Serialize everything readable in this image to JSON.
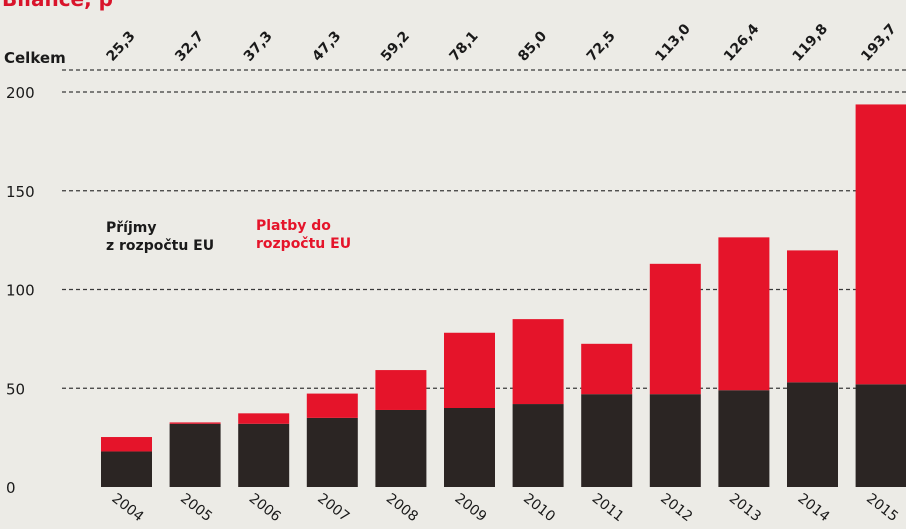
{
  "chart_data": {
    "type": "bar",
    "stacked": true,
    "title": "Bilance, p",
    "totals_label": "Celkem",
    "categories": [
      "2004",
      "2005",
      "2006",
      "2007",
      "2008",
      "2009",
      "2010",
      "2011",
      "2012",
      "2013",
      "2014",
      "2015"
    ],
    "totals": [
      "25,3",
      "32,7",
      "37,3",
      "47,3",
      "59,2",
      "78,1",
      "85,0",
      "72,5",
      "113,0",
      "126,4",
      "119,8",
      "193,7"
    ],
    "series": [
      {
        "name": "Příjmy z rozpočtu EU",
        "color": "#2b2523",
        "values": [
          18,
          32,
          32,
          35,
          39,
          40,
          42,
          47,
          47,
          49,
          53,
          52
        ]
      },
      {
        "name": "Platby do rozpočtu EU",
        "color": "#e5142a",
        "values": [
          7.3,
          0.7,
          5.3,
          12.3,
          20.2,
          38.1,
          43,
          25.5,
          66,
          77.4,
          66.8,
          141.7
        ]
      }
    ],
    "legend": {
      "black_lines": [
        "Příjmy",
        "z rozpočtu EU"
      ],
      "red_lines": [
        "Platby do",
        "rozpočtu EU"
      ]
    },
    "yticks": [
      "0",
      "50",
      "100",
      "150",
      "200"
    ],
    "ylim": [
      0,
      200
    ],
    "grid": true,
    "grid_style": "dashed"
  }
}
